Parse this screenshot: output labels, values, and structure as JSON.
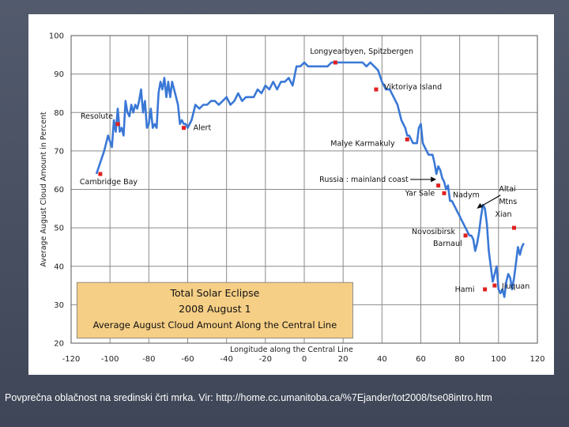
{
  "slide": {
    "caption": "Povprečna oblačnost na sredinski črti mrka. Vir: http://home.cc.umanitoba.ca/%7Ejander/tot2008/tse08intro.htm"
  },
  "chart_data": {
    "type": "line",
    "title": [
      "Total Solar Eclipse",
      "2008 August 1",
      "Average August Cloud Amount Along the Central Line"
    ],
    "xlabel": "Longitude along the Central Line",
    "ylabel": "Average August Cloud Amount in Percent",
    "xlim": [
      -120,
      120
    ],
    "ylim": [
      20,
      100
    ],
    "xticks": [
      -120,
      -100,
      -80,
      -60,
      -40,
      -20,
      0,
      20,
      40,
      60,
      80,
      100,
      120
    ],
    "yticks": [
      20,
      30,
      40,
      50,
      60,
      70,
      80,
      90,
      100
    ],
    "grid": true,
    "colors": {
      "line": "#3a78d6",
      "marker": "#e02020",
      "title_box": "#f6cf86",
      "grid": "#8a8a8a"
    },
    "series": [
      {
        "values_x": [
          -107,
          -105,
          -103,
          -101,
          -99,
          -98,
          -97,
          -96,
          -95,
          -94,
          -93,
          -92,
          -91,
          -90,
          -89,
          -88,
          -87,
          -86,
          -85,
          -84,
          -83,
          -82,
          -81,
          -80,
          -79,
          -78,
          -77,
          -76,
          -75,
          -74,
          -73,
          -72,
          -71,
          -70,
          -69,
          -68,
          -67,
          -66,
          -65,
          -64,
          -63,
          -62,
          -61,
          -60,
          -58,
          -56,
          -54,
          -52,
          -50,
          -48,
          -46,
          -44,
          -42,
          -40,
          -38,
          -36,
          -34,
          -32,
          -30,
          -28,
          -26,
          -24,
          -22,
          -20,
          -18,
          -16,
          -14,
          -12,
          -10,
          -8,
          -6,
          -4,
          -2,
          0,
          2,
          4,
          6,
          8,
          10,
          12,
          14,
          16,
          18,
          20,
          22,
          24,
          26,
          28,
          30,
          32,
          34,
          36,
          38,
          40,
          42,
          44,
          46,
          48,
          50,
          52,
          53,
          54,
          55,
          56,
          57,
          58,
          59,
          60,
          61,
          62,
          63,
          64,
          65,
          66,
          67,
          68,
          69,
          70,
          71,
          72,
          73,
          74,
          75,
          76,
          77,
          78,
          79,
          80,
          81,
          82,
          83,
          84,
          85,
          86,
          87,
          88,
          89,
          90,
          91,
          92,
          93,
          94,
          95,
          96,
          97,
          98,
          99,
          100,
          101,
          102,
          103,
          104,
          105,
          106,
          107,
          108,
          109,
          110,
          111,
          112,
          113
        ],
        "values_y": [
          64,
          67,
          70,
          74,
          71,
          78,
          75,
          81,
          75,
          76,
          74,
          83,
          80,
          79,
          82,
          80,
          82,
          81,
          83,
          86,
          80,
          83,
          76,
          77,
          81,
          76,
          77,
          76,
          85,
          88,
          86,
          89,
          84,
          88,
          84,
          88,
          86,
          84,
          82,
          77,
          78,
          77,
          77,
          76,
          78,
          82,
          81,
          82,
          82,
          83,
          83,
          82,
          83,
          84,
          82,
          83,
          85,
          83,
          84,
          84,
          84,
          86,
          85,
          87,
          86,
          88,
          86,
          88,
          88,
          89,
          87,
          92,
          92,
          93,
          92,
          92,
          92,
          92,
          92,
          92,
          93,
          93,
          93,
          93,
          93,
          93,
          93,
          93,
          93,
          92,
          93,
          92,
          91,
          88,
          86,
          86,
          84,
          82,
          78,
          76,
          74,
          74,
          73,
          72,
          72,
          72,
          76,
          77,
          72,
          71,
          70,
          69,
          69,
          69,
          67,
          64,
          66,
          65,
          63,
          62,
          60,
          61,
          57,
          57,
          56,
          55,
          54,
          53,
          52,
          51,
          50,
          49,
          48,
          48,
          47,
          44,
          46,
          49,
          53,
          56,
          55,
          51,
          44,
          40,
          36,
          38,
          40,
          34,
          33,
          34,
          32,
          36,
          38,
          37,
          34,
          37,
          41,
          45,
          43,
          45,
          46
        ]
      }
    ],
    "sites": [
      {
        "name": "Cambridge Bay",
        "x": -105,
        "y": 64
      },
      {
        "name": "Resolute",
        "x": -96,
        "y": 77
      },
      {
        "name": "Alert",
        "x": -62,
        "y": 76
      },
      {
        "name": "Longyearbyen, Spitzbergen",
        "x": 16,
        "y": 93
      },
      {
        "name": "Viktoriya Island",
        "x": 37,
        "y": 86
      },
      {
        "name": "Malye Karmakuly",
        "x": 53,
        "y": 73
      },
      {
        "name": "Yar Sale",
        "x": 69,
        "y": 61
      },
      {
        "name": "Nadym",
        "x": 72,
        "y": 59
      },
      {
        "name": "Novosibirsk Barnaul",
        "x": 83,
        "y": 48
      },
      {
        "name": "Hami",
        "x": 93,
        "y": 34
      },
      {
        "name": "Jiuquan",
        "x": 98,
        "y": 35
      },
      {
        "name": "Xian",
        "x": 108,
        "y": 50
      }
    ],
    "annotations": [
      {
        "text": "Russia : mainland coast",
        "arrow_to_x": 68,
        "arrow_to_y": 63
      },
      {
        "text": [
          "Altai",
          "Mtns"
        ],
        "arrow_to_x": 88,
        "arrow_to_y": 55
      }
    ]
  }
}
